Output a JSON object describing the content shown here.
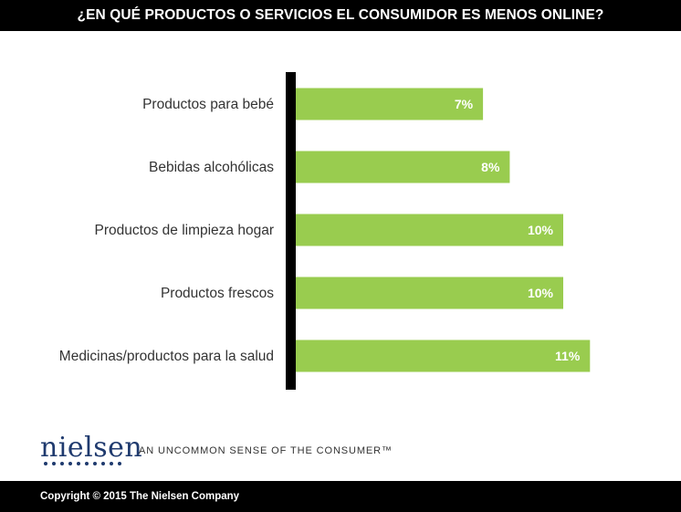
{
  "header": {
    "title": "¿EN QUÉ PRODUCTOS O SERVICIOS EL CONSUMIDOR ES MENOS ONLINE?"
  },
  "colors": {
    "bar": "#99cc4f",
    "axis": "#000000",
    "header_bg": "#000000",
    "brand": "#1f3a6e"
  },
  "chart_data": {
    "type": "bar",
    "orientation": "horizontal",
    "title": "¿EN QUÉ PRODUCTOS O SERVICIOS EL CONSUMIDOR ES MENOS ONLINE?",
    "categories": [
      "Productos para bebé",
      "Bebidas alcohólicas",
      "Productos de limpieza hogar",
      "Productos frescos",
      "Medicinas/productos para la salud"
    ],
    "values": [
      7,
      8,
      10,
      10,
      11
    ],
    "value_labels": [
      "7%",
      "8%",
      "10%",
      "10%",
      "11%"
    ],
    "unit": "%",
    "xlim": [
      0,
      11
    ],
    "grid": false,
    "legend": "none"
  },
  "brand": {
    "logo": "nielsen",
    "tagline": "AN UNCOMMON SENSE OF THE CONSUMER™"
  },
  "footer": {
    "copyright": "Copyright © 2015 The Nielsen Company"
  }
}
